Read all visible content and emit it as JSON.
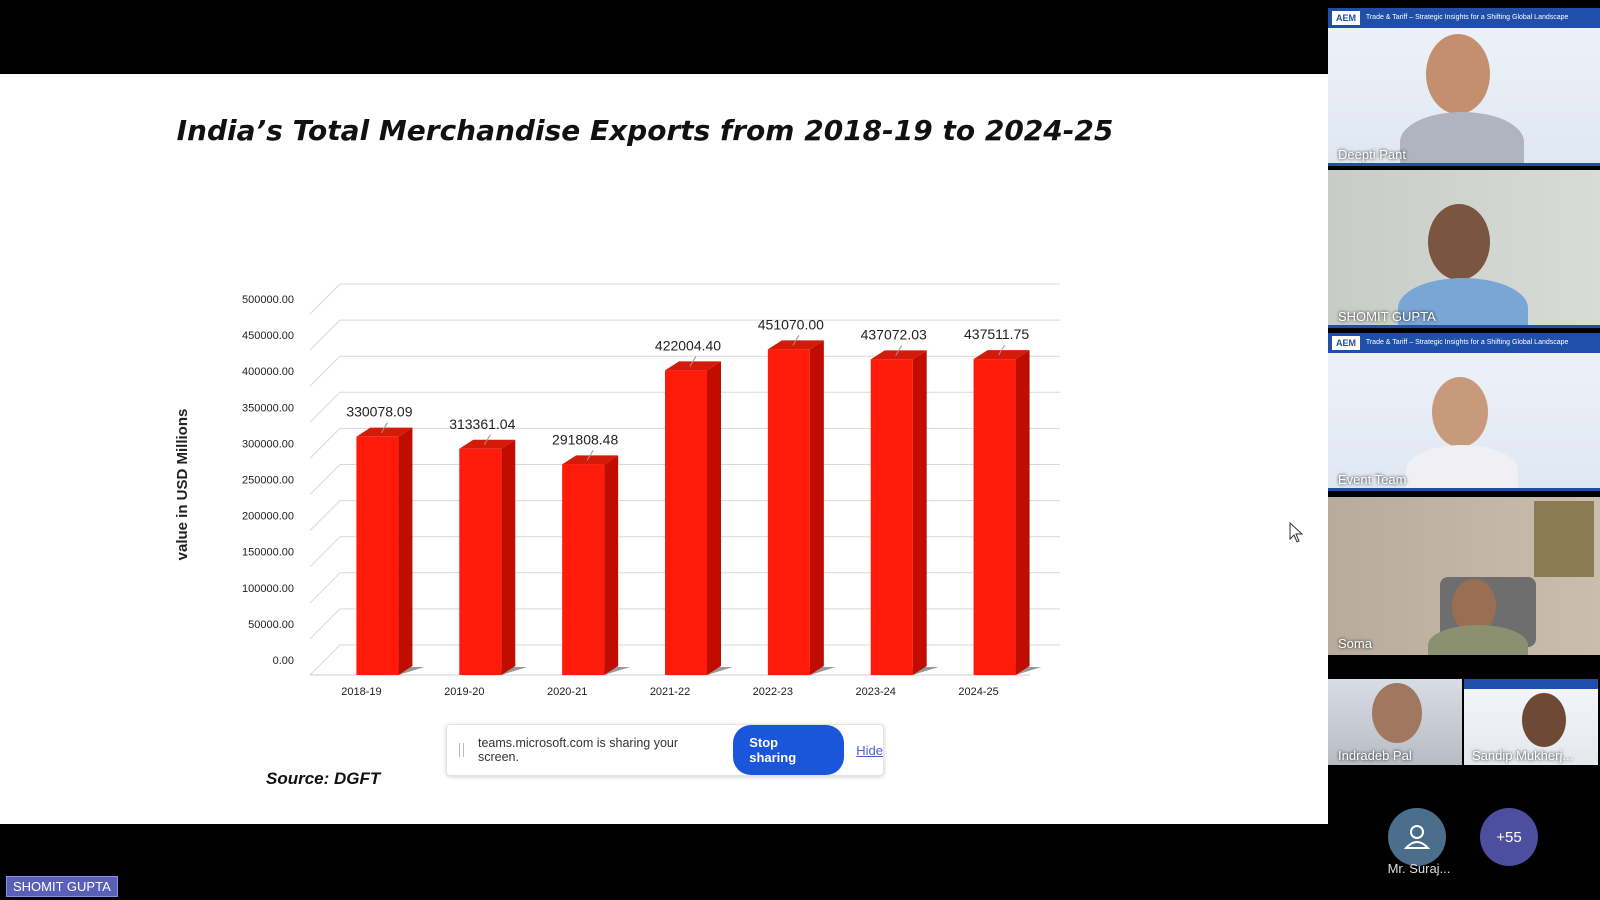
{
  "slide": {
    "title": "India’s Total Merchandise Exports from 2018-19 to 2024-25",
    "source": "Source: DGFT"
  },
  "chart_data": {
    "type": "bar",
    "title": "India’s Total Merchandise Exports from 2018-19 to 2024-25",
    "ylabel": "value in USD Millions",
    "xlabel": "",
    "categories": [
      "2018-19",
      "2019-20",
      "2020-21",
      "2021-22",
      "2022-23",
      "2023-24",
      "2024-25"
    ],
    "values": [
      330078.09,
      313361.04,
      291808.48,
      422004.4,
      451070.0,
      437072.03,
      437511.75
    ],
    "value_labels": [
      "330078.09",
      "313361.04",
      "291808.48",
      "422004.40",
      "451070.00",
      "437072.03",
      "437511.75"
    ],
    "yticks": [
      "0.00",
      "50000.00",
      "100000.00",
      "150000.00",
      "200000.00",
      "250000.00",
      "300000.00",
      "350000.00",
      "400000.00",
      "450000.00",
      "500000.00"
    ],
    "ylim": [
      0,
      500000
    ],
    "bar_color": "#ff1a0a",
    "grid": true,
    "legend": "none"
  },
  "share_bar": {
    "message": "teams.microsoft.com is sharing your screen.",
    "stop_label": "Stop sharing",
    "hide_label": "Hide"
  },
  "presenter_label": "SHOMIT GUPTA",
  "participants": {
    "tiles": [
      {
        "name": "Deepti Pant"
      },
      {
        "name": "SHOMIT GUPTA"
      },
      {
        "name": "Event Team"
      },
      {
        "name": "Soma"
      }
    ],
    "small_tiles": [
      {
        "name": "Indradeb Pal"
      },
      {
        "name": "Sandip Mukherj..."
      }
    ],
    "avatar_name": "Mr. Suraj...",
    "more_count": "+55",
    "banner_logo": "AEM",
    "banner_text": "Trade & Tariff – Strategic Insights for a Shifting Global Landscape"
  }
}
